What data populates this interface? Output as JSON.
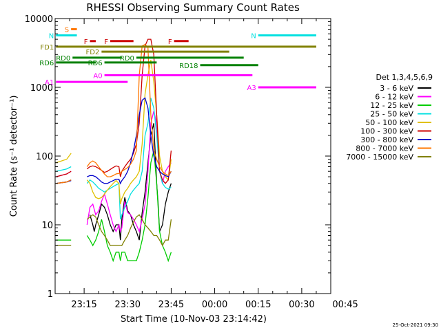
{
  "chart_data": {
    "type": "line",
    "title": "RHESSI Observing Summary Count Rates",
    "xlabel": "Start Time (10-Nov-03 23:14:42)",
    "ylabel": "Count Rate (s⁻¹ detector⁻¹)",
    "yscale": "log",
    "ylim": [
      1,
      10000
    ],
    "xlim_minutes": [
      -10,
      85
    ],
    "x_ticks": [
      "23:15",
      "23:30",
      "23:45",
      "00:00",
      "00:15",
      "00:30",
      "00:45"
    ],
    "y_ticks": [
      "1",
      "10",
      "100",
      "1000",
      "10000"
    ],
    "timestamp": "25-Oct-2021 09:30",
    "legend_placement": "right",
    "legend_header": "Det 1,3,4,5,6,9",
    "series": [
      {
        "name": "3 - 6 keV",
        "color": "#000000",
        "x": [
          -9.7,
          -6,
          -4.5,
          -3.5,
          -3,
          -2,
          -1,
          0,
          1,
          2,
          3,
          3.5,
          4,
          5,
          6,
          7,
          8,
          9,
          10,
          11,
          12,
          12.5,
          13,
          14,
          15,
          16,
          17,
          18,
          19,
          20,
          21,
          22,
          23,
          24,
          25,
          25.5,
          26,
          27,
          28,
          29,
          30
        ],
        "y": [
          40,
          42,
          45,
          0,
          0,
          0,
          0,
          0,
          0,
          14,
          10,
          8,
          10,
          14,
          20,
          18,
          14,
          10,
          8,
          10,
          10,
          6,
          12,
          25,
          16,
          14,
          10,
          8,
          6,
          15,
          30,
          80,
          200,
          300,
          40,
          20,
          8,
          10,
          20,
          30,
          40
        ]
      },
      {
        "name": "6 - 12 keV",
        "color": "#ff00ff",
        "x": [
          -9.7,
          -6,
          -4.5,
          -3,
          -2,
          0,
          1,
          2,
          3,
          4,
          5,
          6,
          7,
          8,
          9,
          10,
          11,
          12,
          12.5,
          13,
          14,
          15,
          16,
          17,
          18,
          19,
          20,
          21,
          22,
          23,
          24,
          25,
          26,
          27,
          28,
          29,
          30
        ],
        "y": [
          50,
          55,
          60,
          0,
          0,
          0,
          10,
          18,
          20,
          14,
          16,
          22,
          28,
          20,
          14,
          10,
          8,
          10,
          8,
          9,
          22,
          15,
          14,
          12,
          10,
          8,
          12,
          20,
          60,
          300,
          450,
          300,
          60,
          40,
          60,
          70,
          80
        ]
      },
      {
        "name": "12 - 25 keV",
        "color": "#00cc00",
        "x": [
          -9.7,
          -6,
          -4.5,
          -3,
          -2,
          0,
          1,
          2,
          3,
          4,
          5,
          6,
          7,
          8,
          9,
          10,
          11,
          12,
          12.5,
          13,
          14,
          15,
          16,
          17,
          18,
          19,
          20,
          21,
          22,
          23,
          24,
          25,
          26,
          27,
          28,
          29,
          30
        ],
        "y": [
          6,
          6,
          6,
          0,
          0,
          0,
          7,
          6,
          5,
          6,
          8,
          12,
          8,
          5,
          4,
          3,
          4,
          4,
          3,
          4,
          4,
          3,
          3,
          3,
          3,
          4,
          6,
          10,
          25,
          80,
          120,
          40,
          8,
          5,
          4,
          3,
          4
        ]
      },
      {
        "name": "25 - 50 keV",
        "color": "#00e0e0",
        "x": [
          -9.7,
          -6,
          -4.5,
          -3,
          -2,
          0,
          1,
          2,
          3,
          4,
          5,
          6,
          7,
          8,
          9,
          10,
          11,
          12,
          12.5,
          13,
          14,
          15,
          16,
          17,
          18,
          19,
          20,
          21,
          22,
          23,
          24,
          25,
          26,
          27,
          28,
          29,
          30
        ],
        "y": [
          60,
          65,
          70,
          0,
          0,
          0,
          40,
          45,
          42,
          38,
          34,
          32,
          30,
          32,
          34,
          36,
          38,
          40,
          12,
          14,
          18,
          22,
          28,
          32,
          36,
          40,
          60,
          200,
          300,
          700,
          500,
          200,
          60,
          40,
          35,
          33,
          35
        ]
      },
      {
        "name": "50 - 100 keV",
        "color": "#e0c000",
        "x": [
          -9.7,
          -6,
          -4.5,
          -3,
          -2,
          0,
          1,
          2,
          3,
          4,
          5,
          6,
          7,
          8,
          9,
          10,
          11,
          12,
          12.5,
          13,
          14,
          15,
          16,
          17,
          18,
          19,
          20,
          21,
          22,
          23,
          24,
          25,
          26,
          27,
          28,
          29,
          30
        ],
        "y": [
          80,
          90,
          110,
          0,
          0,
          0,
          45,
          40,
          30,
          25,
          24,
          25,
          28,
          32,
          36,
          40,
          44,
          40,
          20,
          24,
          30,
          34,
          40,
          45,
          50,
          60,
          150,
          800,
          1500,
          2500,
          1200,
          400,
          100,
          60,
          50,
          45,
          90
        ]
      },
      {
        "name": "100 - 300 keV",
        "color": "#cc0000",
        "x": [
          -9.7,
          -6,
          -4.5,
          -3,
          -2,
          0,
          1,
          2,
          3,
          4,
          5,
          6,
          7,
          8,
          9,
          10,
          11,
          12,
          12.5,
          13,
          14,
          15,
          16,
          17,
          18,
          19,
          20,
          21,
          22,
          23,
          24,
          25,
          26,
          27,
          28,
          29,
          30
        ],
        "y": [
          50,
          55,
          60,
          0,
          0,
          0,
          65,
          70,
          72,
          70,
          66,
          62,
          58,
          60,
          64,
          68,
          72,
          70,
          50,
          60,
          70,
          80,
          90,
          110,
          150,
          300,
          1500,
          4000,
          5000,
          5000,
          3000,
          400,
          60,
          45,
          40,
          45,
          120
        ]
      },
      {
        "name": "300 - 800 keV",
        "color": "#0000cc",
        "x": [
          -9.7,
          -6,
          -4.5,
          -3,
          -2,
          0,
          1,
          2,
          3,
          4,
          5,
          6,
          7,
          8,
          9,
          10,
          11,
          12,
          12.5,
          13,
          14,
          15,
          16,
          17,
          18,
          19,
          20,
          21,
          22,
          23,
          24,
          25,
          26,
          27,
          28,
          29,
          30
        ],
        "y": [
          40,
          42,
          44,
          0,
          0,
          0,
          50,
          52,
          52,
          50,
          46,
          42,
          40,
          40,
          42,
          44,
          46,
          46,
          40,
          44,
          50,
          60,
          80,
          120,
          200,
          400,
          650,
          700,
          500,
          200,
          100,
          70,
          60,
          55,
          52,
          50,
          60
        ]
      },
      {
        "name": "800 - 7000 keV",
        "color": "#ff7700",
        "x": [
          -9.7,
          -6,
          -4.5,
          -3,
          -2,
          0,
          1,
          2,
          3,
          4,
          5,
          6,
          7,
          8,
          9,
          10,
          11,
          12,
          12.5,
          13,
          14,
          15,
          16,
          17,
          18,
          19,
          20,
          21,
          22,
          23,
          24,
          25,
          26,
          27,
          28,
          29,
          30
        ],
        "y": [
          40,
          42,
          45,
          0,
          0,
          0,
          70,
          80,
          85,
          80,
          70,
          62,
          55,
          50,
          50,
          52,
          55,
          56,
          56,
          60,
          64,
          68,
          76,
          90,
          120,
          1500,
          4000,
          4200,
          3800,
          400,
          120,
          90,
          70,
          60,
          55,
          52,
          60
        ]
      },
      {
        "name": "7000 - 15000 keV",
        "color": "#808000",
        "x": [
          -9.7,
          -6,
          -4.5,
          -3,
          -2,
          0,
          1,
          2,
          3,
          4,
          5,
          6,
          7,
          8,
          9,
          10,
          11,
          12,
          12.5,
          13,
          14,
          15,
          16,
          17,
          18,
          19,
          20,
          21,
          22,
          23,
          24,
          25,
          26,
          27,
          28,
          29,
          30
        ],
        "y": [
          5,
          5,
          5,
          0,
          0,
          0,
          12,
          13,
          14,
          13,
          10,
          8,
          7,
          6,
          5,
          5,
          5,
          5,
          5,
          5,
          6,
          7,
          9,
          11,
          13,
          14,
          12,
          10,
          9,
          8,
          7,
          7,
          6,
          5,
          6,
          6,
          12
        ]
      }
    ],
    "annotations": [
      {
        "label": "S",
        "color": "#ff7700",
        "x": [
          -4.5,
          -2.5
        ],
        "y": 7000
      },
      {
        "label": "N",
        "color": "#00e0e0",
        "x": [
          -9.7,
          -2.5
        ],
        "y": 5700
      },
      {
        "label": "N",
        "color": "#00e0e0",
        "x": [
          60,
          80
        ],
        "y": 5700
      },
      {
        "label": "F",
        "color": "#cc0000",
        "x": [
          2,
          4
        ],
        "y": 4700
      },
      {
        "label": "F",
        "color": "#cc0000",
        "x": [
          9,
          17
        ],
        "y": 4700
      },
      {
        "label": "F",
        "color": "#cc0000",
        "x": [
          31,
          36
        ],
        "y": 4700
      },
      {
        "label": "FD1",
        "color": "#808000",
        "x": [
          -9.7,
          80
        ],
        "y": 3900
      },
      {
        "label": "FD2",
        "color": "#808000",
        "x": [
          6,
          50
        ],
        "y": 3300
      },
      {
        "label": "RD0",
        "color": "#008000",
        "x": [
          -4,
          13
        ],
        "y": 2700
      },
      {
        "label": "RD0",
        "color": "#008000",
        "x": [
          18,
          55
        ],
        "y": 2700
      },
      {
        "label": "RD6",
        "color": "#008000",
        "x": [
          -9.7,
          4
        ],
        "y": 2300
      },
      {
        "label": "RD6",
        "color": "#008000",
        "x": [
          7,
          25
        ],
        "y": 2300
      },
      {
        "label": "RD18",
        "color": "#008000",
        "x": [
          40,
          60
        ],
        "y": 2100
      },
      {
        "label": "A0",
        "color": "#ff00ff",
        "x": [
          7,
          58
        ],
        "y": 1500
      },
      {
        "label": "A1",
        "color": "#ff00ff",
        "x": [
          -9.7,
          15
        ],
        "y": 1200
      },
      {
        "label": "A3",
        "color": "#ff00ff",
        "x": [
          60,
          80
        ],
        "y": 1000
      }
    ]
  }
}
